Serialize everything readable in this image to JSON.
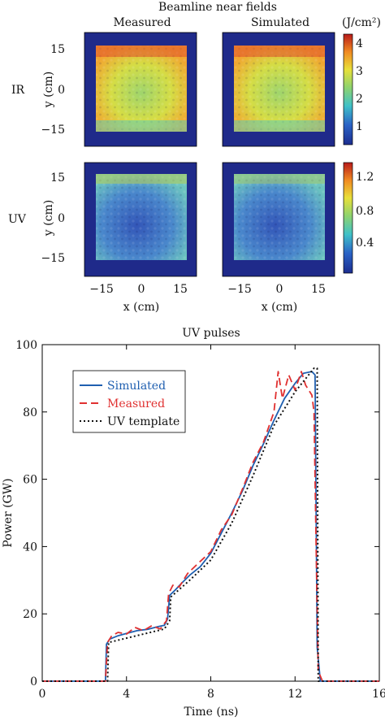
{
  "near_fields": {
    "title": "Beamline near fields",
    "col_titles": [
      "Measured",
      "Simulated"
    ],
    "row_labels": [
      "IR",
      "UV"
    ],
    "ylabel": "y (cm)",
    "xlabel": "x (cm)",
    "ticks": [
      "15",
      "0",
      "−15"
    ],
    "xticks": [
      "−15",
      "0",
      "15"
    ],
    "cbar_unit": "(J/cm²)",
    "ir_cbar_ticks": [
      "4",
      "3",
      "2",
      "1"
    ],
    "uv_cbar_ticks": [
      "1.2",
      "0.8",
      "0.4"
    ]
  },
  "chart_data": {
    "type": "line",
    "title": "UV pulses",
    "xlabel": "Time (ns)",
    "ylabel": "Power (GW)",
    "xlim": [
      0,
      16
    ],
    "ylim": [
      0,
      100
    ],
    "xticks": [
      0,
      4,
      8,
      12,
      16
    ],
    "yticks": [
      0,
      20,
      40,
      60,
      80,
      100
    ],
    "legend_position": "top-left",
    "series": [
      {
        "name": "Simulated",
        "color": "#1f5fb0",
        "style": "solid",
        "x": [
          0,
          3.0,
          3.05,
          3.2,
          3.6,
          4.0,
          4.5,
          5.0,
          5.5,
          5.8,
          5.95,
          6.05,
          6.3,
          6.6,
          7.0,
          7.5,
          8.0,
          8.5,
          9.0,
          9.5,
          10.0,
          10.5,
          11.0,
          11.5,
          12.0,
          12.4,
          12.8,
          12.95,
          13.05,
          13.2,
          16
        ],
        "y": [
          0,
          0,
          11,
          12.5,
          13.5,
          14.2,
          15.0,
          15.4,
          16.2,
          16.6,
          18.5,
          25.5,
          27.0,
          29.0,
          31.5,
          34.0,
          38.0,
          44.0,
          50.0,
          56.5,
          64.0,
          70.5,
          77.5,
          84.0,
          88.5,
          91.5,
          92.0,
          91.0,
          10,
          0,
          0
        ]
      },
      {
        "name": "Measured",
        "color": "#e03030",
        "style": "dashed",
        "x": [
          0,
          3.0,
          3.1,
          3.3,
          3.6,
          4.0,
          4.4,
          4.8,
          5.2,
          5.6,
          5.9,
          6.0,
          6.2,
          6.5,
          6.9,
          7.4,
          8.0,
          8.5,
          9.0,
          9.5,
          10.0,
          10.5,
          11.0,
          11.2,
          11.4,
          11.7,
          12.0,
          12.3,
          12.5,
          12.8,
          12.9,
          13.0,
          13.1,
          13.3,
          16
        ],
        "y": [
          0,
          0,
          11.5,
          13.5,
          14.5,
          14.0,
          16.0,
          15.0,
          16.5,
          15.5,
          18.0,
          26.0,
          28.5,
          28.0,
          32.0,
          35.0,
          38.5,
          45.0,
          49.5,
          57.0,
          65.0,
          71.0,
          80.0,
          92.0,
          84.0,
          91.0,
          86.5,
          92.0,
          88.0,
          85.0,
          80.0,
          40.0,
          3.0,
          0,
          0
        ]
      },
      {
        "name": "UV template",
        "color": "#111111",
        "style": "dotted",
        "x": [
          0,
          3.1,
          3.15,
          5.8,
          6.05,
          6.1,
          7.0,
          8.0,
          9.0,
          10.0,
          11.0,
          12.0,
          12.9,
          13.05,
          13.1,
          16
        ],
        "y": [
          0,
          0,
          11.5,
          15.5,
          18.0,
          25.0,
          30.0,
          36.0,
          47.0,
          61.0,
          76.0,
          86.0,
          93.0,
          93.0,
          0,
          0
        ]
      }
    ]
  }
}
